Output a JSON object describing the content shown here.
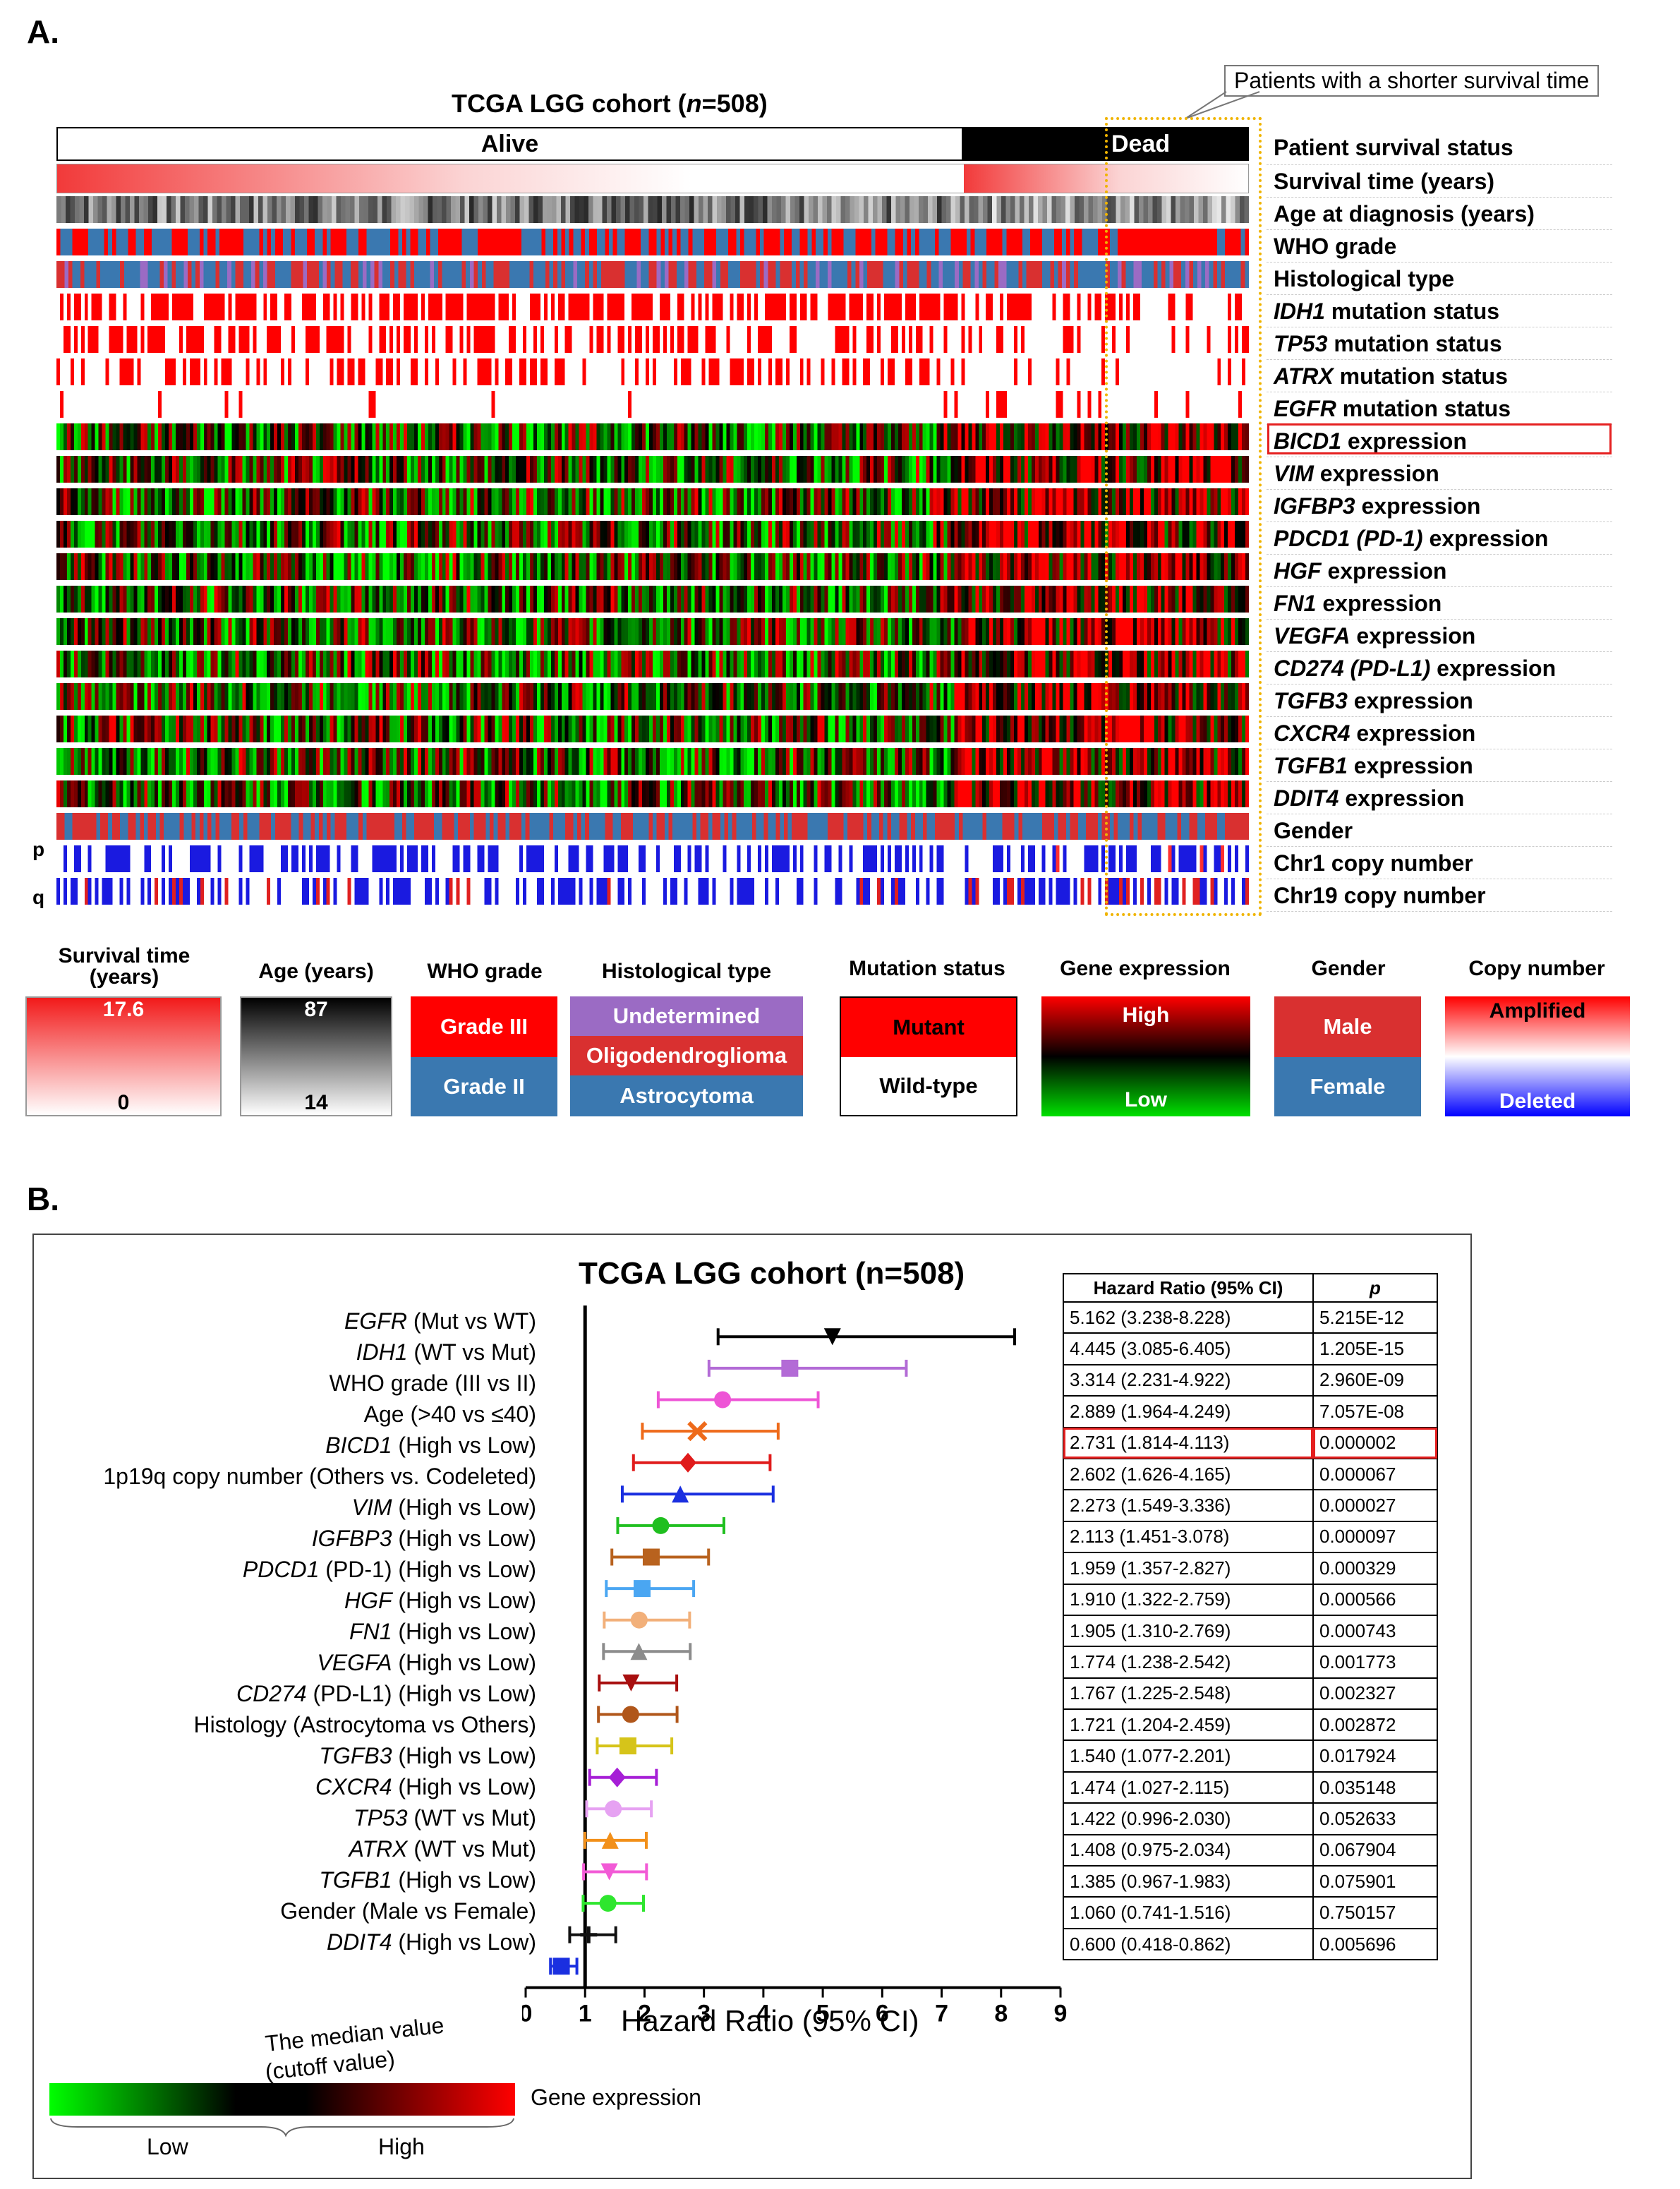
{
  "panelA": {
    "letter": "A.",
    "title": "TCGA LGG cohort (n=508)",
    "title_prefix": "TCGA LGG cohort (",
    "title_n": "n",
    "title_suffix": "=508)",
    "callout": "Patients with a shorter survival time",
    "alive_label": "Alive",
    "dead_label": "Dead",
    "p_label": "p",
    "q_label": "q",
    "tracks": [
      {
        "name": "Patient survival status",
        "italic": "",
        "rest": "Patient survival status"
      },
      {
        "name": "Survival time (years)",
        "italic": "",
        "rest": "Survival time (years)"
      },
      {
        "name": "Age at diagnosis (years)",
        "italic": "",
        "rest": "Age at diagnosis (years)"
      },
      {
        "name": "WHO grade",
        "italic": "",
        "rest": "WHO grade"
      },
      {
        "name": "Histological type",
        "italic": "",
        "rest": "Histological type"
      },
      {
        "name": "IDH1 mutation status",
        "italic": "IDH1",
        "rest": " mutation status"
      },
      {
        "name": "TP53 mutation status",
        "italic": "TP53",
        "rest": " mutation status"
      },
      {
        "name": "ATRX mutation status",
        "italic": "ATRX",
        "rest": " mutation status"
      },
      {
        "name": "EGFR mutation status",
        "italic": "EGFR",
        "rest": " mutation status"
      },
      {
        "name": "BICD1 expression",
        "italic": "BICD1",
        "rest": " expression"
      },
      {
        "name": "VIM expression",
        "italic": "VIM",
        "rest": " expression"
      },
      {
        "name": "IGFBP3 expression",
        "italic": "IGFBP3",
        "rest": " expression"
      },
      {
        "name": "PDCD1 (PD-1) expression",
        "italic": "PDCD1 (PD-1)",
        "rest": " expression"
      },
      {
        "name": "HGF expression",
        "italic": "HGF",
        "rest": " expression"
      },
      {
        "name": "FN1 expression",
        "italic": "FN1",
        "rest": " expression"
      },
      {
        "name": "VEGFA expression",
        "italic": "VEGFA",
        "rest": " expression"
      },
      {
        "name": "CD274 (PD-L1) expression",
        "italic": "CD274 (PD-L1)",
        "rest": " expression"
      },
      {
        "name": "TGFB3 expression",
        "italic": "TGFB3",
        "rest": " expression"
      },
      {
        "name": "CXCR4 expression",
        "italic": "CXCR4",
        "rest": " expression"
      },
      {
        "name": "TGFB1 expression",
        "italic": "TGFB1",
        "rest": " expression"
      },
      {
        "name": "DDIT4 expression",
        "italic": "DDIT4",
        "rest": " expression"
      },
      {
        "name": "Gender",
        "italic": "",
        "rest": "Gender"
      },
      {
        "name": "Chr1 copy number",
        "italic": "",
        "rest": "Chr1 copy number"
      },
      {
        "name": "Chr19 copy number",
        "italic": "",
        "rest": "Chr19 copy number"
      }
    ],
    "legend": {
      "survival": {
        "title": "Survival time (years)",
        "max": "17.6",
        "min": "0"
      },
      "age": {
        "title": "Age (years)",
        "max": "87",
        "min": "14"
      },
      "who": {
        "title": "WHO grade",
        "g3": "Grade III",
        "g2": "Grade II"
      },
      "hist": {
        "title": "Histological type",
        "undetermined": "Undetermined",
        "oligo": "Oligodendroglioma",
        "astro": "Astrocytoma"
      },
      "mutation": {
        "title": "Mutation status",
        "mutant": "Mutant",
        "wild": "Wild-type"
      },
      "expression": {
        "title": "Gene expression",
        "high": "High",
        "low": "Low"
      },
      "gender": {
        "title": "Gender",
        "male": "Male",
        "female": "Female"
      },
      "copy": {
        "title": "Copy number",
        "amp": "Amplified",
        "del": "Deleted"
      }
    },
    "colors": {
      "red": "#ff0000",
      "green": "#00d000",
      "purple": "#9b6bc4",
      "steel": "#3a78b0",
      "male": "#d93030"
    }
  },
  "panelB": {
    "letter": "B.",
    "bottom_legend": {
      "median_label_1": "The median value",
      "median_label_2": "(cutoff value)",
      "gene_expression": "Gene expression",
      "low": "Low",
      "high": "High"
    },
    "chart_data": {
      "type": "forest",
      "title": "TCGA LGG cohort (n=508)",
      "xlabel": "Hazard Ratio (95% CI)",
      "xlim": [
        0,
        9
      ],
      "xticks": [
        "0",
        "1",
        "2",
        "3",
        "4",
        "5",
        "6",
        "7",
        "8",
        "9"
      ],
      "reference_line": 1,
      "table_headers": [
        "Hazard Ratio (95% CI)",
        "p"
      ],
      "rows": [
        {
          "italic": "EGFR",
          "rest": " (Mut vs WT)",
          "label": "EGFR (Mut vs WT)",
          "hr": 5.162,
          "lo": 3.238,
          "hi": 8.228,
          "ci_text": "5.162 (3.238-8.228)",
          "p": "5.215E-12",
          "color": "#000000",
          "marker": "tri-down"
        },
        {
          "italic": "IDH1",
          "rest": " (WT vs Mut)",
          "label": "IDH1 (WT vs Mut)",
          "hr": 4.445,
          "lo": 3.085,
          "hi": 6.405,
          "ci_text": "4.445 (3.085-6.405)",
          "p": "1.205E-15",
          "color": "#b36bd6",
          "marker": "square"
        },
        {
          "italic": "",
          "rest": "WHO grade (III vs II)",
          "label": "WHO grade (III vs II)",
          "hr": 3.314,
          "lo": 2.231,
          "hi": 4.922,
          "ci_text": "3.314 (2.231-4.922)",
          "p": "2.960E-09",
          "color": "#ee55d6",
          "marker": "circle"
        },
        {
          "italic": "",
          "rest": "Age (>40 vs ≤40)",
          "label": "Age (>40 vs ≤40)",
          "hr": 2.889,
          "lo": 1.964,
          "hi": 4.249,
          "ci_text": "2.889 (1.964-4.249)",
          "p": "7.057E-08",
          "color": "#ee6a1a",
          "marker": "x"
        },
        {
          "italic": "BICD1",
          "rest": " (High vs Low)",
          "label": "BICD1 (High vs Low)",
          "hr": 2.731,
          "lo": 1.814,
          "hi": 4.113,
          "ci_text": "2.731 (1.814-4.113)",
          "p": "0.000002",
          "color": "#e01b1b",
          "marker": "diamond",
          "highlight": true
        },
        {
          "italic": "",
          "rest": "1p19q copy number (Others vs. Codeleted)",
          "label": "1p19q copy number (Others vs. Codeleted)",
          "hr": 2.602,
          "lo": 1.626,
          "hi": 4.165,
          "ci_text": "2.602 (1.626-4.165)",
          "p": "0.000067",
          "color": "#1a2fe0",
          "marker": "tri-up"
        },
        {
          "italic": "VIM",
          "rest": " (High vs Low)",
          "label": "VIM (High vs Low)",
          "hr": 2.273,
          "lo": 1.549,
          "hi": 3.336,
          "ci_text": "2.273 (1.549-3.336)",
          "p": "0.000027",
          "color": "#1fbf1f",
          "marker": "circle"
        },
        {
          "italic": "IGFBP3",
          "rest": " (High vs Low)",
          "label": "IGFBP3 (High vs Low)",
          "hr": 2.113,
          "lo": 1.451,
          "hi": 3.078,
          "ci_text": "2.113 (1.451-3.078)",
          "p": "0.000097",
          "color": "#b8621e",
          "marker": "square"
        },
        {
          "italic": "PDCD1",
          "rest": " (PD-1) (High vs Low)",
          "label": "PDCD1 (PD-1) (High vs Low)",
          "hr": 1.959,
          "lo": 1.357,
          "hi": 2.827,
          "ci_text": "1.959 (1.357-2.827)",
          "p": "0.000329",
          "color": "#4aa6f2",
          "marker": "square"
        },
        {
          "italic": "HGF",
          "rest": " (High vs Low)",
          "label": "HGF (High vs Low)",
          "hr": 1.91,
          "lo": 1.322,
          "hi": 2.759,
          "ci_text": "1.910 (1.322-2.759)",
          "p": "0.000566",
          "color": "#f2b07a",
          "marker": "circle"
        },
        {
          "italic": "FN1",
          "rest": " (High vs Low)",
          "label": "FN1 (High vs Low)",
          "hr": 1.905,
          "lo": 1.31,
          "hi": 2.769,
          "ci_text": "1.905 (1.310-2.769)",
          "p": "0.000743",
          "color": "#8c8c8c",
          "marker": "tri-up"
        },
        {
          "italic": "VEGFA",
          "rest": " (High vs Low)",
          "label": "VEGFA (High vs Low)",
          "hr": 1.774,
          "lo": 1.238,
          "hi": 2.542,
          "ci_text": "1.774 (1.238-2.542)",
          "p": "0.001773",
          "color": "#a80f0f",
          "marker": "tri-down"
        },
        {
          "italic": "CD274",
          "rest": " (PD-L1) (High vs Low)",
          "label": "CD274 (PD-L1) (High vs Low)",
          "hr": 1.767,
          "lo": 1.225,
          "hi": 2.548,
          "ci_text": "1.767 (1.225-2.548)",
          "p": "0.002327",
          "color": "#b0561a",
          "marker": "circle"
        },
        {
          "italic": "",
          "rest": "Histology (Astrocytoma vs Others)",
          "label": "Histology (Astrocytoma vs Others)",
          "hr": 1.721,
          "lo": 1.204,
          "hi": 2.459,
          "ci_text": "1.721 (1.204-2.459)",
          "p": "0.002872",
          "color": "#d6c41a",
          "marker": "square"
        },
        {
          "italic": "TGFB3",
          "rest": " (High vs Low)",
          "label": "TGFB3 (High vs Low)",
          "hr": 1.54,
          "lo": 1.077,
          "hi": 2.201,
          "ci_text": "1.540 (1.077-2.201)",
          "p": "0.017924",
          "color": "#a61fd6",
          "marker": "diamond"
        },
        {
          "italic": "CXCR4",
          "rest": " (High vs Low)",
          "label": "CXCR4 (High vs Low)",
          "hr": 1.474,
          "lo": 1.027,
          "hi": 2.115,
          "ci_text": "1.474 (1.027-2.115)",
          "p": "0.035148",
          "color": "#e6a2f2",
          "marker": "circle"
        },
        {
          "italic": "TP53",
          "rest": " (WT vs Mut)",
          "label": "TP53 (WT vs Mut)",
          "hr": 1.422,
          "lo": 0.996,
          "hi": 2.03,
          "ci_text": "1.422 (0.996-2.030)",
          "p": "0.052633",
          "color": "#f2901a",
          "marker": "tri-up"
        },
        {
          "italic": "ATRX",
          "rest": " (WT vs Mut)",
          "label": "ATRX (WT vs Mut)",
          "hr": 1.408,
          "lo": 0.975,
          "hi": 2.034,
          "ci_text": "1.408 (0.975-2.034)",
          "p": "0.067904",
          "color": "#f25ad6",
          "marker": "tri-down"
        },
        {
          "italic": "TGFB1",
          "rest": " (High vs Low)",
          "label": "TGFB1 (High vs Low)",
          "hr": 1.385,
          "lo": 0.967,
          "hi": 1.983,
          "ci_text": "1.385 (0.967-1.983)",
          "p": "0.075901",
          "color": "#2ee62e",
          "marker": "circle"
        },
        {
          "italic": "",
          "rest": "Gender (Male vs Female)",
          "label": "Gender (Male vs Female)",
          "hr": 1.06,
          "lo": 0.741,
          "hi": 1.516,
          "ci_text": "1.060 (0.741-1.516)",
          "p": "0.750157",
          "color": "#111111",
          "marker": "plus"
        },
        {
          "italic": "DDIT4",
          "rest": " (High vs Low)",
          "label": "DDIT4 (High vs Low)",
          "hr": 0.6,
          "lo": 0.418,
          "hi": 0.862,
          "ci_text": "0.600 (0.418-0.862)",
          "p": "0.005696",
          "color": "#1a2fe0",
          "marker": "square"
        }
      ]
    }
  }
}
